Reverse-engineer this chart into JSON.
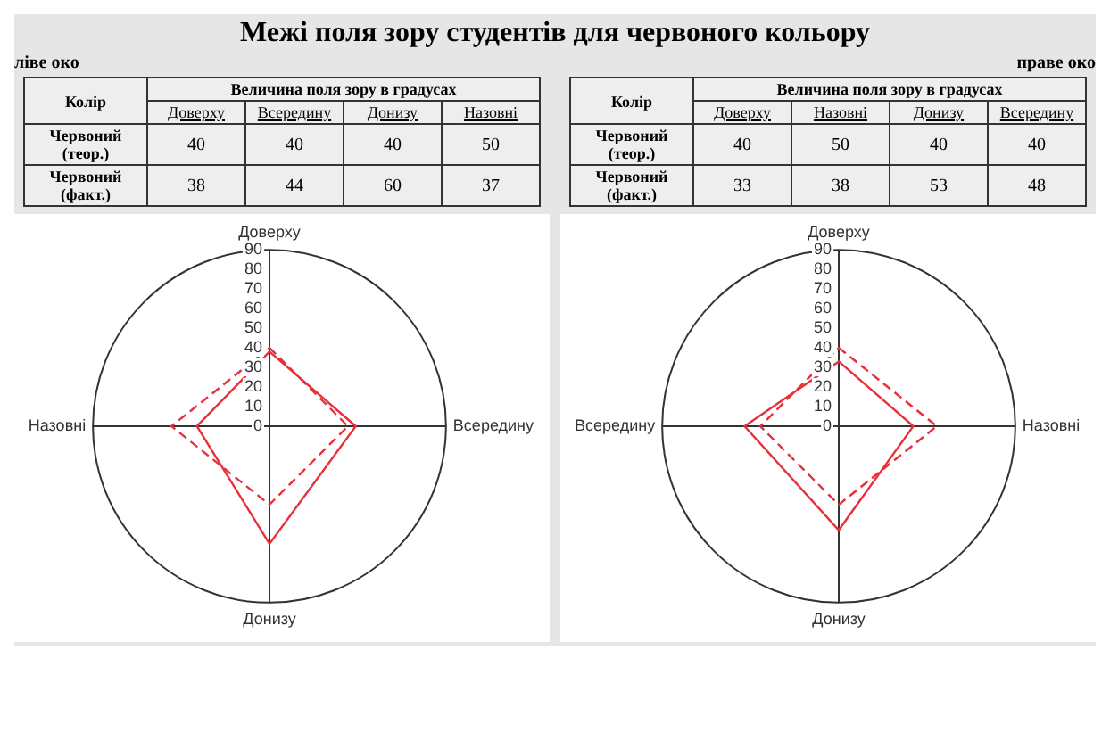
{
  "chart_data": [
    {
      "type": "other",
      "title": "Межі поля зору студентів для червоного кольору"
    },
    {
      "type": "heatmap",
      "title": "ліве око",
      "ylabel": "Колір",
      "xlabel": "Величина поля зору в градусах",
      "categories": [
        "Доверху",
        "Всередину",
        "Донизу",
        "Назовні"
      ],
      "y_categories": [
        "Червоний (теор.)",
        "Червоний (факт.)"
      ],
      "data_labels": true,
      "cells": [
        [
          40,
          40,
          40,
          50
        ],
        [
          38,
          44,
          60,
          37
        ]
      ]
    },
    {
      "type": "heatmap",
      "title": "праве око",
      "ylabel": "Колір",
      "xlabel": "Величина поля зору в градусах",
      "categories": [
        "Доверху",
        "Назовні",
        "Донизу",
        "Всередину"
      ],
      "y_categories": [
        "Червоний (теор.)",
        "Червоний (факт.)"
      ],
      "data_labels": true,
      "cells": [
        [
          40,
          50,
          40,
          40
        ],
        [
          33,
          38,
          53,
          48
        ]
      ]
    },
    {
      "type": "radar",
      "categories": [
        "Доверху",
        "Всередину",
        "Донизу",
        "Назовні"
      ],
      "ylim": [
        0,
        90
      ],
      "yticks": [
        0,
        10,
        20,
        30,
        40,
        50,
        60,
        70,
        80,
        90
      ],
      "marker": "none",
      "series": [
        {
          "color": "#e8303a",
          "line_style": "dashed",
          "values": [
            40,
            40,
            40,
            50
          ]
        },
        {
          "color": "#e8303a",
          "line_style": "solid",
          "values": [
            38,
            44,
            60,
            37
          ]
        }
      ]
    },
    {
      "type": "radar",
      "categories": [
        "Доверху",
        "Назовні",
        "Донизу",
        "Всередину"
      ],
      "ylim": [
        0,
        90
      ],
      "yticks": [
        0,
        10,
        20,
        30,
        40,
        50,
        60,
        70,
        80,
        90
      ],
      "marker": "none",
      "series": [
        {
          "color": "#e8303a",
          "line_style": "dashed",
          "values": [
            40,
            50,
            40,
            40
          ]
        },
        {
          "color": "#e8303a",
          "line_style": "solid",
          "values": [
            33,
            38,
            53,
            48
          ]
        }
      ]
    }
  ]
}
